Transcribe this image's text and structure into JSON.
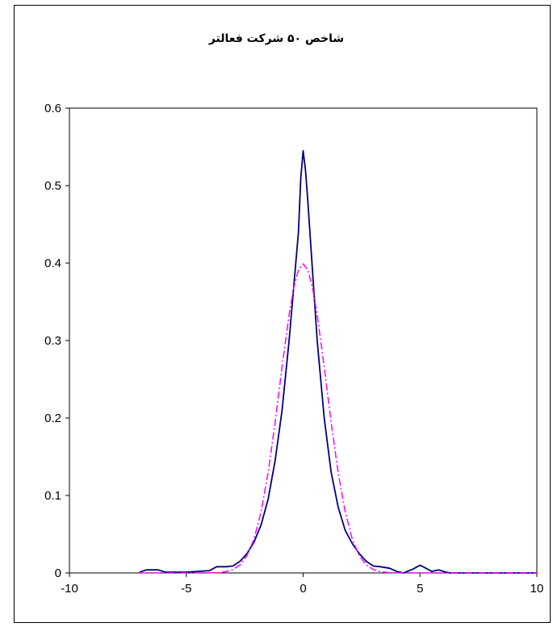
{
  "chart_data": {
    "type": "line",
    "title": "شاخص ۵۰ شرکت فعالتر",
    "xlim": [
      -10,
      10
    ],
    "ylim": [
      0,
      0.6
    ],
    "x_ticks": [
      "-10",
      "-5",
      "0",
      "5",
      "10"
    ],
    "y_ticks": [
      "0",
      "0.1",
      "0.2",
      "0.3",
      "0.4",
      "0.5",
      "0.6"
    ],
    "grid": false,
    "legend": "none",
    "series": [
      {
        "color": "#000080",
        "style": "solid",
        "x": [
          -7,
          -6.7,
          -6.2,
          -5.9,
          -5.5,
          -5,
          -4.5,
          -4,
          -3.7,
          -3.3,
          -3,
          -2.7,
          -2.4,
          -2.1,
          -1.8,
          -1.5,
          -1.2,
          -0.9,
          -0.6,
          -0.4,
          -0.2,
          -0.1,
          0,
          0.1,
          0.2,
          0.4,
          0.6,
          0.9,
          1.2,
          1.5,
          1.8,
          2.1,
          2.4,
          2.7,
          3,
          3.3,
          3.7,
          4,
          4.3,
          4.7,
          5,
          5.2,
          5.5,
          5.8,
          6.1,
          6.3,
          6.6,
          7,
          8,
          9,
          10
        ],
        "y": [
          0.001,
          0.004,
          0.004,
          0.001,
          0.001,
          0.001,
          0.002,
          0.003,
          0.008,
          0.008,
          0.009,
          0.015,
          0.025,
          0.04,
          0.062,
          0.095,
          0.145,
          0.21,
          0.3,
          0.37,
          0.44,
          0.51,
          0.545,
          0.52,
          0.48,
          0.39,
          0.3,
          0.2,
          0.13,
          0.085,
          0.055,
          0.038,
          0.025,
          0.015,
          0.009,
          0.008,
          0.006,
          0.002,
          0,
          0.005,
          0.01,
          0.007,
          0.002,
          0.004,
          0.001,
          0,
          0,
          0,
          0,
          0,
          0
        ]
      },
      {
        "color": "#ff00ff",
        "style": "dashdot",
        "x": [
          -7,
          -6,
          -5,
          -4.5,
          -4,
          -3.6,
          -3.3,
          -3,
          -2.7,
          -2.4,
          -2.1,
          -1.8,
          -1.5,
          -1.2,
          -0.9,
          -0.6,
          -0.4,
          -0.2,
          0,
          0.2,
          0.4,
          0.6,
          0.9,
          1.2,
          1.5,
          1.8,
          2.1,
          2.4,
          2.7,
          3,
          3.3,
          3.6,
          4,
          4.5,
          5,
          6,
          7,
          8,
          9,
          10
        ],
        "y": [
          0,
          0,
          0,
          0,
          0.0001,
          0.0006,
          0.0017,
          0.0044,
          0.0104,
          0.0224,
          0.044,
          0.079,
          0.1295,
          0.1942,
          0.2661,
          0.3332,
          0.3683,
          0.391,
          0.399,
          0.391,
          0.3683,
          0.3332,
          0.2661,
          0.1942,
          0.1295,
          0.079,
          0.044,
          0.0224,
          0.0104,
          0.0044,
          0.0017,
          0.0006,
          0.0001,
          0,
          0,
          0,
          0,
          0,
          0,
          0
        ]
      }
    ]
  }
}
